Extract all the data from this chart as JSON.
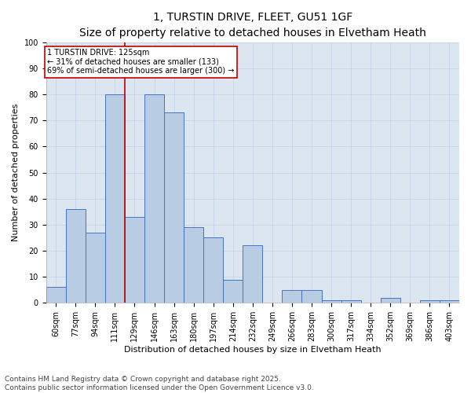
{
  "title_line1": "1, TURSTIN DRIVE, FLEET, GU51 1GF",
  "title_line2": "Size of property relative to detached houses in Elvetham Heath",
  "xlabel": "Distribution of detached houses by size in Elvetham Heath",
  "ylabel": "Number of detached properties",
  "categories": [
    "60sqm",
    "77sqm",
    "94sqm",
    "111sqm",
    "129sqm",
    "146sqm",
    "163sqm",
    "180sqm",
    "197sqm",
    "214sqm",
    "232sqm",
    "249sqm",
    "266sqm",
    "283sqm",
    "300sqm",
    "317sqm",
    "334sqm",
    "352sqm",
    "369sqm",
    "386sqm",
    "403sqm"
  ],
  "values": [
    6,
    36,
    27,
    80,
    33,
    80,
    73,
    29,
    25,
    9,
    22,
    0,
    5,
    5,
    1,
    1,
    0,
    2,
    0,
    1,
    1
  ],
  "bar_color": "#b8cce4",
  "bar_edge_color": "#4472c4",
  "grid_color": "#c5d5e8",
  "background_color": "#dce6f1",
  "vline_x": 3.5,
  "vline_color": "#c00000",
  "annotation_title": "1 TURSTIN DRIVE: 125sqm",
  "annotation_line1": "← 31% of detached houses are smaller (133)",
  "annotation_line2": "69% of semi-detached houses are larger (300) →",
  "annotation_box_color": "#c00000",
  "ylim": [
    0,
    100
  ],
  "yticks": [
    0,
    10,
    20,
    30,
    40,
    50,
    60,
    70,
    80,
    90,
    100
  ],
  "footnote": "Contains HM Land Registry data © Crown copyright and database right 2025.\nContains public sector information licensed under the Open Government Licence v3.0.",
  "footnote_fontsize": 6.5,
  "title_fontsize1": 10,
  "title_fontsize2": 9,
  "xlabel_fontsize": 8,
  "ylabel_fontsize": 8,
  "tick_fontsize": 7,
  "annot_fontsize": 7
}
